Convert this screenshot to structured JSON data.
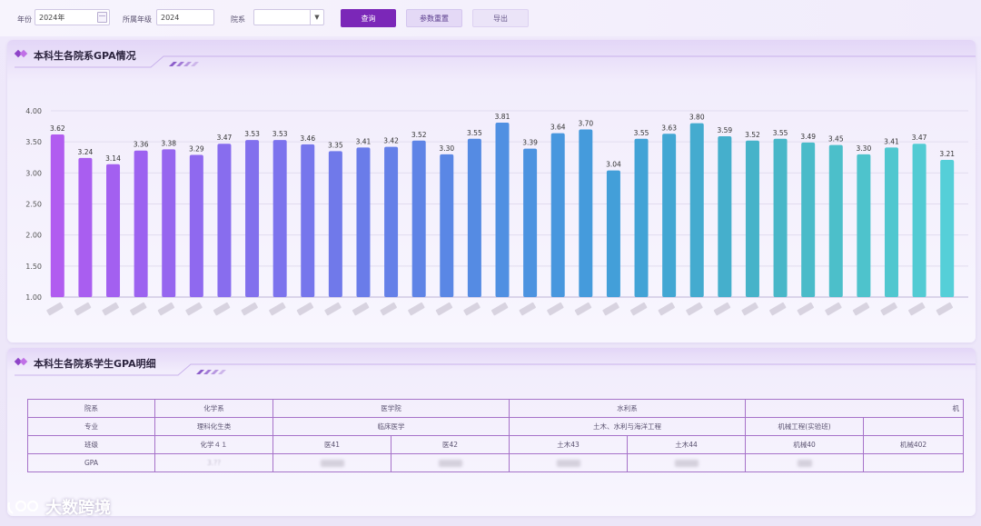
{
  "filters": {
    "year_label": "年份",
    "year_value": "2024年",
    "grade_label": "所属年级",
    "grade_value": "2024",
    "college_label": "院系",
    "college_value": "",
    "query_btn": "查询",
    "reset_btn": "参数重置",
    "export_btn": "导出"
  },
  "chart_panel": {
    "title": "本科生各院系GPA情况"
  },
  "chart_data": {
    "type": "bar",
    "title": "本科生各院系GPA情况",
    "ylim": [
      1.0,
      4.0
    ],
    "yticks": [
      "1.00",
      "1.50",
      "2.00",
      "2.50",
      "3.00",
      "3.50",
      "4.00"
    ],
    "categories_note": "category labels blurred in original",
    "values": [
      3.62,
      3.24,
      3.14,
      3.36,
      3.38,
      3.29,
      3.47,
      3.53,
      3.53,
      3.46,
      3.35,
      3.41,
      3.42,
      3.52,
      3.3,
      3.55,
      3.81,
      3.39,
      3.64,
      3.7,
      3.04,
      3.55,
      3.63,
      3.8,
      3.59,
      3.52,
      3.55,
      3.49,
      3.45,
      3.3,
      3.41,
      3.47,
      3.21
    ],
    "labels": [
      "3.62",
      "3.24",
      "3.14",
      "3.36",
      "3.38",
      "3.29",
      "3.47",
      "3.53",
      "3.53",
      "3.46",
      "3.35",
      "3.41",
      "3.42",
      "3.52",
      "3.30",
      "3.55",
      "3.81",
      "3.39",
      "3.64",
      "3.70",
      "3.04",
      "3.55",
      "3.63",
      "3.80",
      "3.59",
      "3.52",
      "3.55",
      "3.49",
      "3.45",
      "3.30",
      "3.41",
      "3.47",
      "3.21"
    ],
    "colors": [
      "#b15cf0",
      "#a95ef0",
      "#a360f0",
      "#9c62f0",
      "#9666ef",
      "#8f69ef",
      "#886dee",
      "#8270ed",
      "#7c73ed",
      "#7676ec",
      "#7079ea",
      "#6a7ce9",
      "#6580e8",
      "#5f84e6",
      "#5a87e5",
      "#558be3",
      "#5090e2",
      "#4c93e0",
      "#4897de",
      "#459bdc",
      "#439fd9",
      "#42a3d6",
      "#42a7d3",
      "#44abcf",
      "#45afcc",
      "#46b3c9",
      "#48b7c8",
      "#4abbc9",
      "#4cbfca",
      "#4ec3cc",
      "#50c7cf",
      "#52cbd3",
      "#55cfd8"
    ],
    "grid": true
  },
  "table_panel": {
    "title": "本科生各院系学生GPA明细"
  },
  "table": {
    "row_headers": [
      "院系",
      "专业",
      "班级",
      "GPA"
    ],
    "colleges": [
      "化学系",
      "医学院",
      "水利系",
      "机"
    ],
    "majors": [
      "理科化生类",
      "临床医学",
      "土木、水利与海洋工程",
      "机械工程(实验班)",
      ""
    ],
    "classes": [
      "化学４１",
      "医41",
      "医42",
      "土木43",
      "土木44",
      "机械40",
      "机械402"
    ],
    "gpa_first_hint": "3.??"
  },
  "watermark": {
    "text": "大数跨境"
  }
}
